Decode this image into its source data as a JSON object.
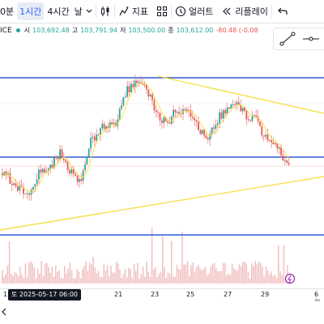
{
  "toolbar": {
    "timeframes": [
      "0분",
      "1시간",
      "4시간"
    ],
    "timeframe_more": "날",
    "indicators_label": "지표",
    "alert_label": "얼러트",
    "replay_label": "리플레이",
    "icons": [
      "chart-type-icon",
      "indicators-icon",
      "templates-icon",
      "alert-icon",
      "replay-icon",
      "undo-icon"
    ]
  },
  "legend": {
    "symbol_suffix": "ICE",
    "open_label": "시",
    "open": "103,692.48",
    "high_label": "고",
    "high": "103,791.94",
    "low_label": "저",
    "low": "103,500.00",
    "close_label": "종",
    "close": "103,612.00",
    "change": "-80.48 (-0.08"
  },
  "xaxis": {
    "labels": [
      "15",
      "21",
      "23",
      "25",
      "27",
      "29",
      "6월"
    ],
    "cursor_label": "토 2025-05-17   06:00"
  },
  "colors": {
    "up": "#26a69a",
    "down": "#ef5350",
    "wick": "#e57373",
    "hline": "#2f5bd3",
    "trend": "#f5e14a",
    "volume": "#f2c3c3"
  },
  "chart_data": {
    "type": "candlestick",
    "title": "",
    "xlabel": "",
    "ylabel": "",
    "x_ticks": [
      "15",
      "21",
      "23",
      "25",
      "27",
      "29",
      "6월"
    ],
    "close_series": [
      0.36,
      0.33,
      0.28,
      0.25,
      0.2,
      0.3,
      0.38,
      0.36,
      0.44,
      0.5,
      0.42,
      0.35,
      0.3,
      0.4,
      0.6,
      0.62,
      0.7,
      0.68,
      0.72,
      0.9,
      0.95,
      1.0,
      0.97,
      0.9,
      0.8,
      0.74,
      0.7,
      0.78,
      0.76,
      0.82,
      0.72,
      0.66,
      0.6,
      0.68,
      0.75,
      0.8,
      0.84,
      0.83,
      0.78,
      0.72,
      0.74,
      0.62,
      0.58,
      0.55,
      0.47,
      0.4
    ],
    "horizontal_levels": [
      "upper-resistance",
      "middle-support",
      "lower-support"
    ]
  }
}
